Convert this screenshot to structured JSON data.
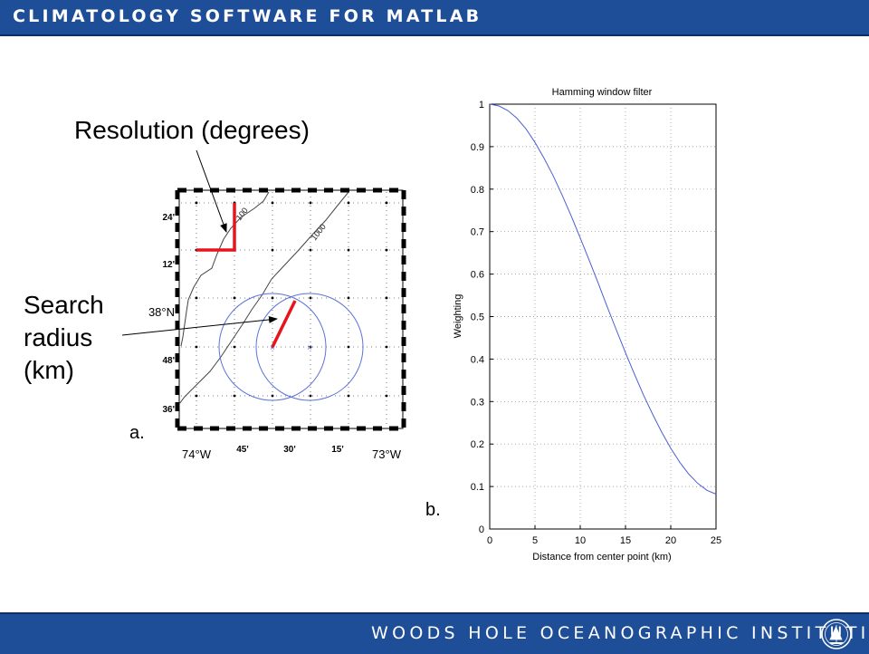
{
  "header": {
    "title": "CLIMATOLOGY SOFTWARE FOR MATLAB"
  },
  "footer": {
    "title": "WOODS HOLE OCEANOGRAPHIC INSTITUTION",
    "logo_icon": "whoi-sailboat-logo-icon"
  },
  "annotations": {
    "resolution": "Resolution (degrees)",
    "search_line1": "Search",
    "search_line2": "radius",
    "search_line3": "(km)",
    "panel_a": "a.",
    "panel_b": "b."
  },
  "map": {
    "lat_labels": [
      "24'",
      "12'",
      "38°N",
      "48'",
      "36'"
    ],
    "lon_labels": [
      "74°W",
      "45'",
      "30'",
      "15'",
      "73°W"
    ],
    "contour_labels": [
      "100",
      "1000"
    ],
    "colors": {
      "annotation_line": "#e8141b",
      "circle": "#5a72d8",
      "contour": "#444444"
    }
  },
  "chart_data": {
    "type": "line",
    "title": "Hamming window filter",
    "xlabel": "Distance from center point (km)",
    "ylabel": "Weighting",
    "xlim": [
      0,
      25
    ],
    "ylim": [
      0,
      1
    ],
    "xticks": [
      "0",
      "5",
      "10",
      "15",
      "20",
      "25"
    ],
    "yticks": [
      "0",
      "0.1",
      "0.2",
      "0.3",
      "0.4",
      "0.5",
      "0.6",
      "0.7",
      "0.8",
      "0.9",
      "1"
    ],
    "grid": true,
    "series": [
      {
        "color": "#4b5fd6",
        "x": [
          0,
          1,
          2,
          3,
          4,
          5,
          6,
          7,
          8,
          9,
          10,
          11,
          12,
          13,
          14,
          15,
          16,
          17,
          18,
          19,
          20,
          21,
          22,
          23,
          24,
          25
        ],
        "y": [
          1.0,
          0.996,
          0.985,
          0.967,
          0.942,
          0.91,
          0.873,
          0.832,
          0.786,
          0.737,
          0.685,
          0.632,
          0.578,
          0.522,
          0.468,
          0.415,
          0.364,
          0.315,
          0.27,
          0.228,
          0.19,
          0.157,
          0.129,
          0.107,
          0.091,
          0.082
        ]
      }
    ]
  }
}
